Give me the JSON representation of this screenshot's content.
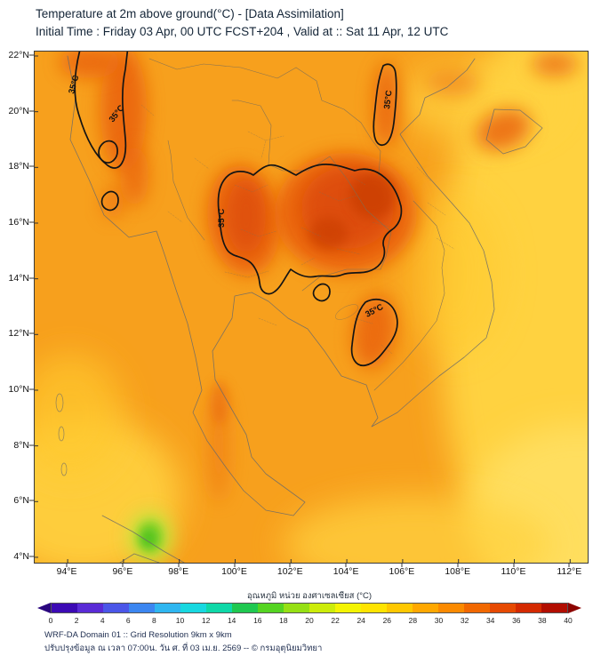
{
  "header": {
    "title_line1": "Temperature at 2m above ground(°C) - [Data Assimilation]",
    "title_line2": "Initial Time : Friday 03 Apr, 00 UTC FCST+204 , Valid at :: Sat 11 Apr, 12 UTC"
  },
  "map": {
    "lat_ticks": [
      "22°N",
      "20°N",
      "18°N",
      "16°N",
      "14°N",
      "12°N",
      "10°N",
      "8°N",
      "6°N",
      "4°N"
    ],
    "lon_ticks": [
      "94°E",
      "96°E",
      "98°E",
      "100°E",
      "102°E",
      "104°E",
      "106°E",
      "108°E",
      "110°E",
      "112°E"
    ],
    "contour_label": "35°C",
    "field_colors": {
      "base_orange": "#F7A01D",
      "warm_yellow": "#FFD23F",
      "hot_orange_red": "#EA6410",
      "hot_core_red": "#C93D06",
      "cool_green": "#3FBE1A"
    }
  },
  "colorbar": {
    "label": "อุณหภูมิ หน่วย องศาเซลเซียส (°C)",
    "ticks": [
      0,
      2,
      4,
      6,
      8,
      10,
      12,
      14,
      16,
      18,
      20,
      22,
      24,
      26,
      28,
      30,
      32,
      34,
      36,
      38,
      40
    ],
    "cell_colors": [
      "#3C0AB4",
      "#5A2BD6",
      "#4B56E8",
      "#3C86F0",
      "#2FB6F0",
      "#18D8E0",
      "#0FD8A8",
      "#1FC850",
      "#55D422",
      "#96E014",
      "#CCEC0A",
      "#F4F402",
      "#FFE400",
      "#FFC800",
      "#FFA800",
      "#FB8A00",
      "#F16800",
      "#E64A02",
      "#D42A00",
      "#B20E00"
    ],
    "under_arrow_color": "#2A067E",
    "over_arrow_color": "#8C0400"
  },
  "footer": {
    "line1": "WRF-DA Domain 01 :: Grid Resolution 9km x 9km",
    "line2": "ปรับปรุงข้อมูล ณ เวลา 07:00น. วัน ศ. ที่ 03 เม.ย. 2569 -- © กรมอุตุนิยมวิทยา"
  }
}
